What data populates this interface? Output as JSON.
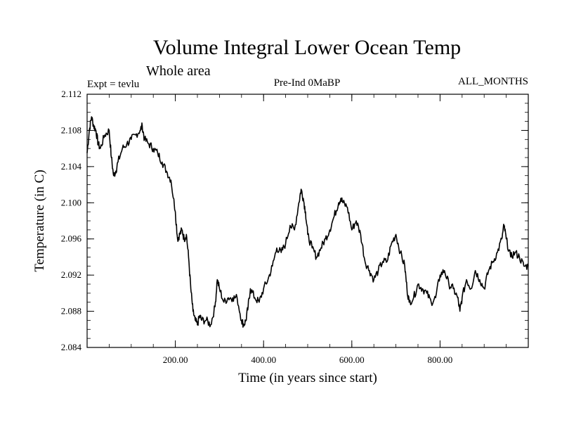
{
  "chart_data": {
    "type": "line",
    "title": "Volume Integral Lower Ocean Temp",
    "subtitle": "Whole area",
    "left_label": "Expt = tevlu",
    "center_label": "Pre-Ind 0MaBP",
    "right_label": "ALL_MONTHS",
    "xlabel": "Time (in years since start)",
    "ylabel": "Temperature (in C)",
    "xlim": [
      0,
      1000
    ],
    "ylim": [
      2.084,
      2.112
    ],
    "x_ticks": [
      200,
      400,
      600,
      800
    ],
    "x_tick_labels": [
      "200.00",
      "400.00",
      "600.00",
      "800.00"
    ],
    "y_ticks": [
      2.084,
      2.088,
      2.092,
      2.096,
      2.1,
      2.104,
      2.108,
      2.112
    ],
    "y_tick_labels": [
      "2.084",
      "2.088",
      "2.092",
      "2.096",
      "2.100",
      "2.104",
      "2.108",
      "2.112"
    ],
    "series": [
      {
        "name": "tevlu",
        "color": "#000000",
        "x": [
          0,
          5,
          10,
          15,
          20,
          25,
          30,
          40,
          50,
          55,
          60,
          65,
          70,
          80,
          90,
          100,
          110,
          120,
          125,
          130,
          140,
          150,
          160,
          170,
          180,
          190,
          200,
          205,
          210,
          215,
          220,
          225,
          230,
          235,
          240,
          245,
          250,
          255,
          260,
          270,
          280,
          290,
          295,
          300,
          310,
          320,
          330,
          340,
          350,
          355,
          360,
          365,
          370,
          380,
          390,
          400,
          410,
          420,
          430,
          440,
          450,
          460,
          470,
          480,
          485,
          490,
          495,
          500,
          510,
          520,
          530,
          540,
          550,
          560,
          570,
          575,
          580,
          590,
          600,
          610,
          620,
          630,
          640,
          650,
          660,
          670,
          680,
          690,
          700,
          710,
          720,
          725,
          730,
          740,
          750,
          760,
          770,
          780,
          790,
          800,
          810,
          820,
          830,
          840,
          845,
          850,
          860,
          870,
          880,
          890,
          900,
          910,
          920,
          930,
          940,
          945,
          950,
          960,
          970,
          980,
          990,
          1000
        ],
        "y": [
          2.1055,
          2.108,
          2.1095,
          2.1085,
          2.108,
          2.1065,
          2.106,
          2.1075,
          2.108,
          2.105,
          2.103,
          2.1035,
          2.1045,
          2.106,
          2.1065,
          2.107,
          2.1075,
          2.108,
          2.1085,
          2.107,
          2.1065,
          2.106,
          2.1055,
          2.1045,
          2.1035,
          2.1025,
          2.099,
          2.096,
          2.0965,
          2.097,
          2.096,
          2.0965,
          2.094,
          2.0905,
          2.088,
          2.087,
          2.0865,
          2.0875,
          2.087,
          2.087,
          2.0865,
          2.0885,
          2.0915,
          2.0905,
          2.089,
          2.0895,
          2.0895,
          2.0895,
          2.087,
          2.0865,
          2.087,
          2.0885,
          2.0905,
          2.0895,
          2.089,
          2.0905,
          2.0915,
          2.093,
          2.095,
          2.0945,
          2.0955,
          2.0975,
          2.097,
          2.1,
          2.1015,
          2.1005,
          2.099,
          2.0965,
          2.095,
          2.094,
          2.095,
          2.096,
          2.097,
          2.0985,
          2.1,
          2.1005,
          2.1,
          2.0995,
          2.097,
          2.098,
          2.0965,
          2.0935,
          2.0925,
          2.0915,
          2.0925,
          2.0935,
          2.0935,
          2.0955,
          2.0965,
          2.0945,
          2.093,
          2.0905,
          2.089,
          2.0895,
          2.091,
          2.0905,
          2.09,
          2.089,
          2.0895,
          2.092,
          2.0925,
          2.091,
          2.0905,
          2.0895,
          2.088,
          2.0895,
          2.0915,
          2.0905,
          2.0925,
          2.0915,
          2.0905,
          2.0925,
          2.0935,
          2.0945,
          2.096,
          2.0975,
          2.096,
          2.094,
          2.0945,
          2.094,
          2.093,
          2.093
        ]
      }
    ]
  }
}
